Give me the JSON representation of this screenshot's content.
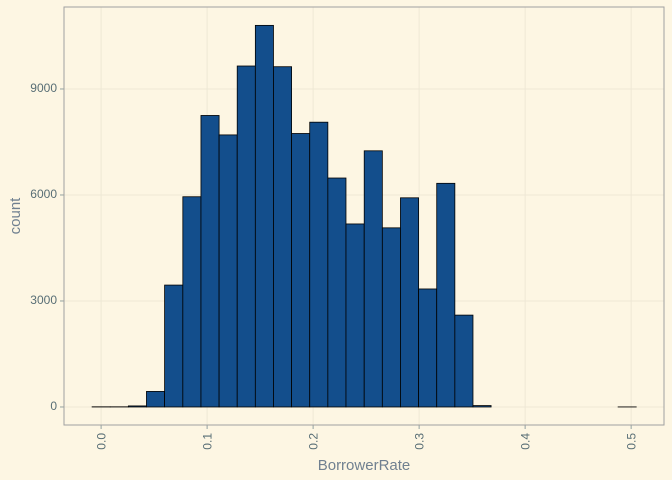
{
  "chart_data": {
    "type": "histogram",
    "x_label": "BorrowerRate",
    "y_label": "count",
    "bins": [
      -0.0085,
      0.0086,
      0.0257,
      0.0428,
      0.0599,
      0.0771,
      0.0942,
      0.1113,
      0.1284,
      0.1455,
      0.1626,
      0.1797,
      0.1968,
      0.2139,
      0.231,
      0.2482,
      0.2653,
      0.2824,
      0.2995,
      0.3166,
      0.3337,
      0.3508,
      0.3679,
      0.385,
      0.4021,
      0.4193,
      0.4364,
      0.4535,
      0.4706,
      0.4877,
      0.5048
    ],
    "counts": [
      5,
      5,
      30,
      440,
      3450,
      5950,
      8250,
      7700,
      9650,
      10800,
      9630,
      7740,
      8060,
      6480,
      5180,
      7250,
      5070,
      5920,
      3340,
      6330,
      2600,
      40,
      0,
      0,
      0,
      0,
      0,
      0,
      0,
      2
    ],
    "color": "#134e8c",
    "edge_color": "#000000",
    "xlim": [
      -0.035,
      0.531
    ],
    "ylim": [
      -510,
      11320
    ],
    "xticks": [
      {
        "value": 0,
        "label": "0.0"
      },
      0.1,
      0.2,
      0.3,
      0.4,
      0.5
    ],
    "yticks": [
      0,
      3000,
      6000,
      9000
    ],
    "grid": true
  }
}
